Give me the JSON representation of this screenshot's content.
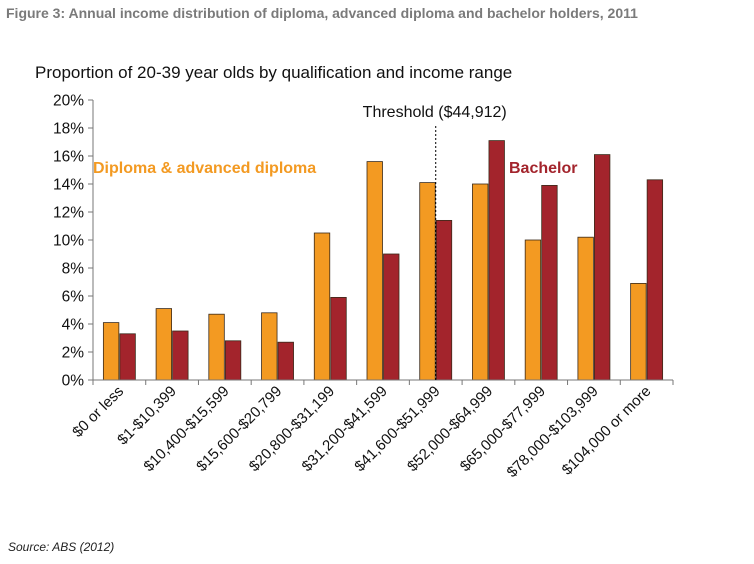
{
  "figure": {
    "title": "Figure 3: Annual income distribution of diploma, advanced diploma and bachelor holders, 2011",
    "source": "Source: ABS (2012)"
  },
  "chart_data": {
    "type": "bar",
    "title": "Proportion of 20-39 year olds by qualification and income range",
    "categories": [
      "$0 or less",
      "$1-$10,399",
      "$10,400-$15,599",
      "$15,600-$20,799",
      "$20,800-$31,199",
      "$31,200-$41,599",
      "$41,600-$51,999",
      "$52,000-$64,999",
      "$65,000-$77,999",
      "$78,000-$103,999",
      "$104,000 or more"
    ],
    "series": [
      {
        "name": "Diploma & advanced diploma",
        "color": "#f39a22",
        "values": [
          4.1,
          5.1,
          4.7,
          4.8,
          10.5,
          15.6,
          14.1,
          14.0,
          10.0,
          10.2,
          6.9
        ]
      },
      {
        "name": "Bachelor",
        "color": "#a3242c",
        "values": [
          3.3,
          3.5,
          2.8,
          2.7,
          5.9,
          9.0,
          11.4,
          17.1,
          13.9,
          16.1,
          14.3
        ]
      }
    ],
    "ylim": [
      0,
      20
    ],
    "yticks": [
      "0%",
      "2%",
      "4%",
      "6%",
      "8%",
      "10%",
      "12%",
      "14%",
      "16%",
      "18%",
      "20%"
    ],
    "grid": false,
    "threshold": {
      "label": "Threshold ($44,912)",
      "category_position": 6.5
    }
  }
}
